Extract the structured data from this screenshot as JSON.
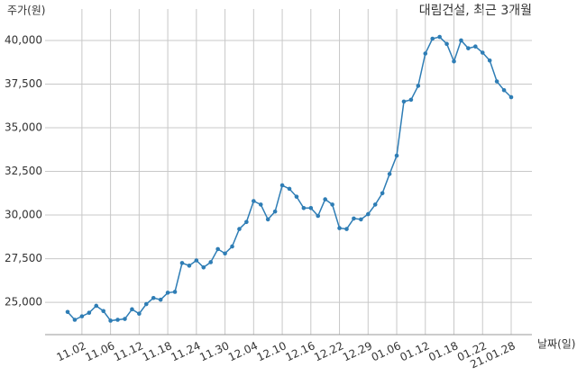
{
  "chart_data": {
    "type": "line",
    "title": "대림건설, 최근 3개월",
    "y_label": "주가(원)",
    "x_label": "날짜(일)",
    "categories": [
      null,
      null,
      "11.02",
      null,
      null,
      null,
      "11.06",
      null,
      null,
      null,
      "11.12",
      null,
      null,
      null,
      "11.18",
      null,
      null,
      null,
      "11.24",
      null,
      null,
      null,
      "11.30",
      null,
      null,
      null,
      "12.04",
      null,
      null,
      null,
      "12.10",
      null,
      null,
      null,
      "12.16",
      null,
      null,
      null,
      "12.22",
      null,
      null,
      null,
      "12.29",
      null,
      null,
      null,
      "01.06",
      null,
      null,
      null,
      "01.12",
      null,
      null,
      null,
      "01.18",
      null,
      null,
      null,
      "01.22",
      null,
      null,
      null,
      "21.01.28"
    ],
    "values": [
      24450,
      24000,
      24200,
      24400,
      24800,
      24500,
      23950,
      24000,
      24050,
      24600,
      24350,
      24900,
      25250,
      25150,
      25550,
      25600,
      27250,
      27100,
      27400,
      27000,
      27300,
      28050,
      27800,
      28200,
      29200,
      29600,
      30800,
      30600,
      29750,
      30200,
      31700,
      31500,
      31050,
      30400,
      30400,
      29950,
      30900,
      30600,
      29250,
      29200,
      29800,
      29750,
      30050,
      30600,
      31250,
      32350,
      33400,
      36500,
      36600,
      37400,
      39250,
      40100,
      40200,
      39800,
      38800,
      40000,
      39550,
      39650,
      39300,
      38850,
      37650,
      37150,
      36750
    ],
    "color": "#2e7db5",
    "ylim": [
      23150,
      41800
    ],
    "yticks": [
      {
        "value": 25000,
        "label": "25,000"
      },
      {
        "value": 27500,
        "label": "27,500"
      },
      {
        "value": 30000,
        "label": "30,000"
      },
      {
        "value": 32500,
        "label": "32,500"
      },
      {
        "value": 35000,
        "label": "35,000"
      },
      {
        "value": 37500,
        "label": "37,500"
      },
      {
        "value": 40000,
        "label": "40,000"
      }
    ],
    "grid": true
  }
}
